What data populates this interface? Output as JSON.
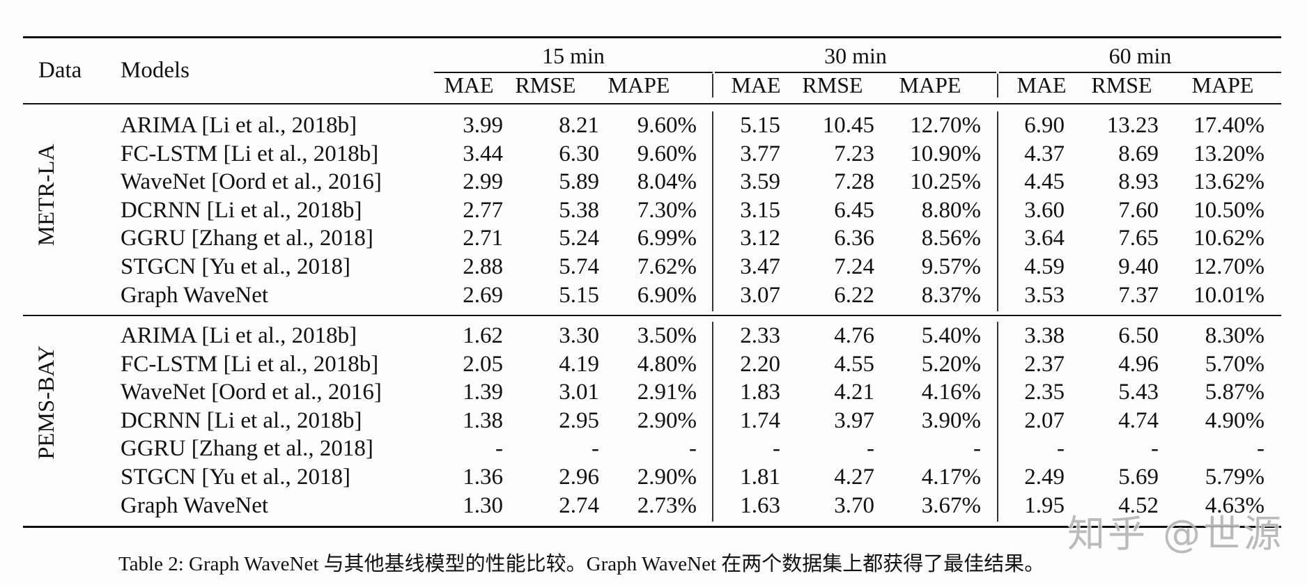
{
  "table": {
    "header": {
      "data_label": "Data",
      "models_label": "Models",
      "horizons": [
        "15 min",
        "30 min",
        "60 min"
      ],
      "metrics": [
        "MAE",
        "RMSE",
        "MAPE"
      ]
    },
    "sections": [
      {
        "dataset": "METR-LA",
        "rows": [
          {
            "model": "ARIMA [Li et al., 2018b]",
            "values": [
              "3.99",
              "8.21",
              "9.60%",
              "5.15",
              "10.45",
              "12.70%",
              "6.90",
              "13.23",
              "17.40%"
            ]
          },
          {
            "model": "FC-LSTM [Li et al., 2018b]",
            "values": [
              "3.44",
              "6.30",
              "9.60%",
              "3.77",
              "7.23",
              "10.90%",
              "4.37",
              "8.69",
              "13.20%"
            ]
          },
          {
            "model": "WaveNet [Oord et al., 2016]",
            "values": [
              "2.99",
              "5.89",
              "8.04%",
              "3.59",
              "7.28",
              "10.25%",
              "4.45",
              "8.93",
              "13.62%"
            ]
          },
          {
            "model": "DCRNN [Li et al., 2018b]",
            "values": [
              "2.77",
              "5.38",
              "7.30%",
              "3.15",
              "6.45",
              "8.80%",
              "3.60",
              "7.60",
              "10.50%"
            ]
          },
          {
            "model": "GGRU [Zhang et al., 2018]",
            "values": [
              "2.71",
              "5.24",
              "6.99%",
              "3.12",
              "6.36",
              "8.56%",
              "3.64",
              "7.65",
              "10.62%"
            ]
          },
          {
            "model": "STGCN [Yu et al., 2018]",
            "values": [
              "2.88",
              "5.74",
              "7.62%",
              "3.47",
              "7.24",
              "9.57%",
              "4.59",
              "9.40",
              "12.70%"
            ]
          },
          {
            "model": "Graph WaveNet",
            "values": [
              "2.69",
              "5.15",
              "6.90%",
              "3.07",
              "6.22",
              "8.37%",
              "3.53",
              "7.37",
              "10.01%"
            ]
          }
        ]
      },
      {
        "dataset": "PEMS-BAY",
        "rows": [
          {
            "model": "ARIMA [Li et al., 2018b]",
            "values": [
              "1.62",
              "3.30",
              "3.50%",
              "2.33",
              "4.76",
              "5.40%",
              "3.38",
              "6.50",
              "8.30%"
            ]
          },
          {
            "model": "FC-LSTM [Li et al., 2018b]",
            "values": [
              "2.05",
              "4.19",
              "4.80%",
              "2.20",
              "4.55",
              "5.20%",
              "2.37",
              "4.96",
              "5.70%"
            ]
          },
          {
            "model": "WaveNet [Oord et al., 2016]",
            "values": [
              "1.39",
              "3.01",
              "2.91%",
              "1.83",
              "4.21",
              "4.16%",
              "2.35",
              "5.43",
              "5.87%"
            ]
          },
          {
            "model": "DCRNN [Li et al., 2018b]",
            "values": [
              "1.38",
              "2.95",
              "2.90%",
              "1.74",
              "3.97",
              "3.90%",
              "2.07",
              "4.74",
              "4.90%"
            ]
          },
          {
            "model": "GGRU [Zhang et al., 2018]",
            "values": [
              "-",
              "-",
              "-",
              "-",
              "-",
              "-",
              "-",
              "-",
              "-"
            ]
          },
          {
            "model": "STGCN [Yu et al., 2018]",
            "values": [
              "1.36",
              "2.96",
              "2.90%",
              "1.81",
              "4.27",
              "4.17%",
              "2.49",
              "5.69",
              "5.79%"
            ]
          },
          {
            "model": "Graph WaveNet",
            "values": [
              "1.30",
              "2.74",
              "2.73%",
              "1.63",
              "3.70",
              "3.67%",
              "1.95",
              "4.52",
              "4.63%"
            ]
          }
        ]
      }
    ]
  },
  "caption": "Table 2: Graph WaveNet 与其他基线模型的性能比较。Graph WaveNet 在两个数据集上都获得了最佳结果。",
  "watermark": "知乎 @世源"
}
